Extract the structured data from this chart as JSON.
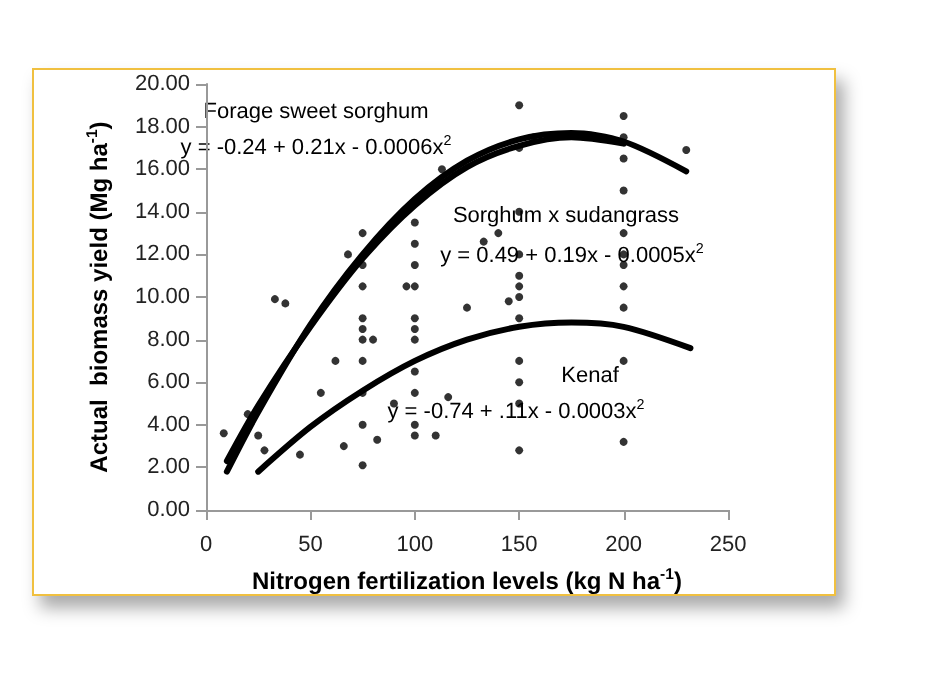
{
  "chart_data": {
    "type": "scatter",
    "xlabel": "Nitrogen fertilization levels (kg N ha$^{-1}$)",
    "ylabel": "Actual  biomass yield (Mg ha$^{-1}$)",
    "xlim": [
      0,
      250
    ],
    "xticks": [
      0,
      50,
      100,
      150,
      200,
      250
    ],
    "ylim": [
      0,
      20
    ],
    "yticks": [
      {
        "value": 0,
        "label": "0.00"
      },
      {
        "value": 2,
        "label": "2.00"
      },
      {
        "value": 4,
        "label": "4.00"
      },
      {
        "value": 6,
        "label": "6.00"
      },
      {
        "value": 8,
        "label": "8.00"
      },
      {
        "value": 10,
        "label": "10.00"
      },
      {
        "value": 12,
        "label": "12.00"
      },
      {
        "value": 14,
        "label": "14.00"
      },
      {
        "value": 16,
        "label": "16.00"
      },
      {
        "value": 18,
        "label": "18.00"
      },
      {
        "value": 20,
        "label": "20.00"
      }
    ],
    "grid": false,
    "series": [
      {
        "color": "#000000",
        "marker": "circle",
        "x": [
          8.5,
          20,
          25,
          28,
          33,
          38,
          45,
          55,
          62,
          66,
          68,
          80,
          82,
          90,
          96,
          110,
          113,
          116,
          125,
          133,
          140,
          145,
          157,
          230,
          75,
          75,
          75,
          75,
          75,
          75,
          75,
          75,
          75,
          75,
          100,
          100,
          100,
          100,
          100,
          100,
          100,
          100,
          100,
          100,
          100,
          150,
          150,
          150,
          150,
          150,
          150,
          150,
          150,
          150,
          150,
          150,
          150,
          200,
          200,
          200,
          200,
          200,
          200,
          200,
          200,
          200,
          200,
          200
        ],
        "values": [
          3.6,
          4.5,
          3.5,
          2.8,
          9.9,
          9.7,
          2.6,
          5.5,
          7.0,
          3.0,
          12.0,
          8.0,
          3.3,
          5.0,
          10.5,
          3.5,
          16.0,
          5.3,
          9.5,
          12.6,
          13.0,
          9.8,
          17.5,
          16.9,
          2.1,
          4.0,
          5.5,
          7.0,
          8.0,
          8.5,
          9.0,
          10.5,
          11.5,
          13.0,
          3.5,
          4.0,
          5.5,
          6.5,
          8.0,
          8.5,
          9.0,
          10.5,
          11.5,
          12.5,
          13.5,
          2.8,
          5.0,
          6.0,
          7.0,
          9.0,
          10.0,
          10.5,
          11.0,
          12.0,
          14.0,
          17.0,
          19.0,
          3.2,
          7.0,
          9.5,
          10.5,
          11.5,
          12.0,
          13.0,
          15.0,
          16.5,
          17.5,
          18.5
        ]
      },
      {
        "type": "line",
        "color": "#000000",
        "marker": "none",
        "line_style": "solid",
        "x": [
          10,
          25,
          50,
          75,
          100,
          125,
          150,
          175,
          200,
          230
        ],
        "values": [
          1.8,
          4.6,
          8.7,
          12.0,
          14.6,
          16.4,
          17.4,
          17.7,
          17.3,
          15.9
        ]
      },
      {
        "type": "line",
        "color": "#000000",
        "marker": "none",
        "line_style": "solid",
        "x": [
          10,
          25,
          50,
          75,
          100,
          125,
          150,
          175,
          200
        ],
        "values": [
          2.3,
          4.9,
          8.6,
          11.8,
          14.3,
          16.1,
          17.1,
          17.5,
          17.2
        ]
      },
      {
        "type": "line",
        "color": "#000000",
        "marker": "none",
        "line_style": "solid",
        "x": [
          25,
          50,
          75,
          100,
          125,
          150,
          175,
          200,
          232
        ],
        "values": [
          1.8,
          3.9,
          5.6,
          7.0,
          8.0,
          8.6,
          8.8,
          8.6,
          7.6
        ]
      }
    ],
    "annotations": [
      "Forage sweet sorghum",
      "y = -0.24 + 0.21x - 0.0006x$^{2}$",
      "Sorghum x sudangrass",
      "y = 0.49 + 0.19x - 0.0005x$^{2}$",
      "Kenaf",
      "y = -0.74 + .11x - 0.0003x$^{2}$"
    ]
  }
}
